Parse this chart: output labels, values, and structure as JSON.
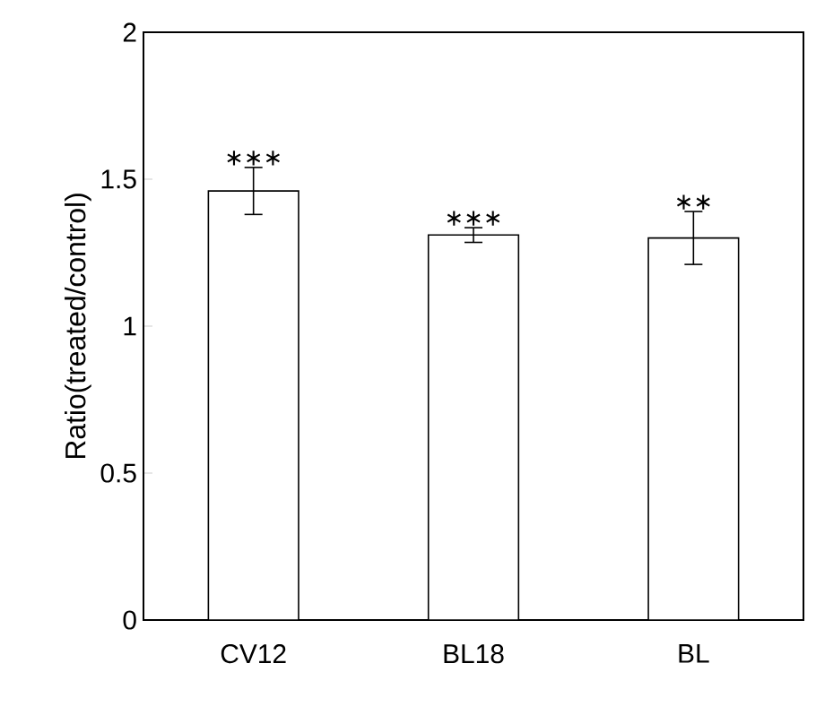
{
  "chart_data": {
    "type": "bar",
    "ylabel": "Ratio(treated/control)",
    "categories": [
      "CV12",
      "BL18",
      "BL"
    ],
    "values": [
      1.46,
      1.31,
      1.3
    ],
    "errors": [
      0.08,
      0.025,
      0.09
    ],
    "color": "#ffffff",
    "ylim": [
      0,
      2
    ],
    "yticks": [
      0,
      0.5,
      1,
      1.5,
      2
    ],
    "annotations": [
      {
        "text": "∗∗∗",
        "x": "CV12",
        "y": 1.54
      },
      {
        "text": "∗∗∗",
        "x": "BL18",
        "y": 1.335
      },
      {
        "text": "∗∗",
        "x": "BL",
        "y": 1.39
      }
    ]
  }
}
